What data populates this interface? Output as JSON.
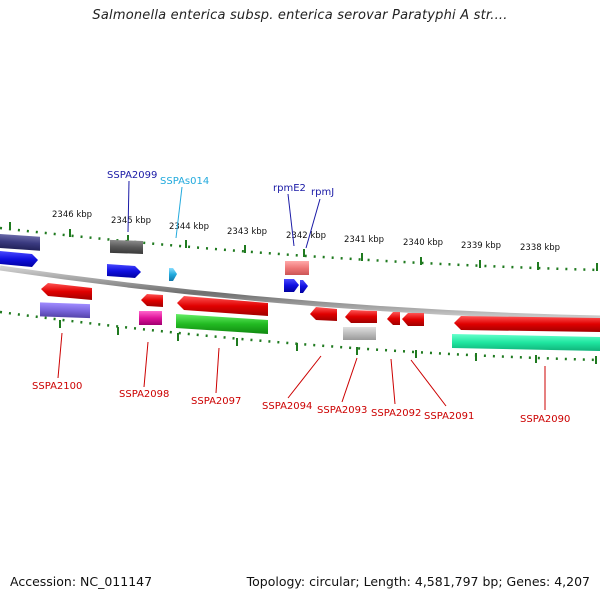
{
  "title": "Salmonella enterica subsp. enterica serovar Paratyphi A str....",
  "footer": {
    "accession": "Accession: NC_011147",
    "summary": "Topology: circular; Length: 4,581,797 bp; Genes: 4,207"
  },
  "colors": {
    "backbone": "#7a7a7a",
    "tick": "#1f7a1f",
    "label_forward_red": "#cc0000",
    "label_blue": "#1a1aa6",
    "label_cyan": "#22aadd"
  },
  "kbp_labels": [
    "2346 kbp",
    "2345 kbp",
    "2344 kbp",
    "2343 kbp",
    "2342 kbp",
    "2341 kbp",
    "2340 kbp",
    "2339 kbp",
    "2338 kbp"
  ],
  "upper_labels": [
    {
      "text": "SSPA2099",
      "color": "#1a1aa6"
    },
    {
      "text": "SSPAs014",
      "color": "#22aadd"
    },
    {
      "text": "rpmE2",
      "color": "#1a1aa6"
    },
    {
      "text": "rpmJ",
      "color": "#1a1aa6"
    }
  ],
  "lower_labels": [
    {
      "text": "SSPA2100",
      "color": "#cc0000"
    },
    {
      "text": "SSPA2098",
      "color": "#cc0000"
    },
    {
      "text": "SSPA2097",
      "color": "#cc0000"
    },
    {
      "text": "SSPA2094",
      "color": "#cc0000"
    },
    {
      "text": "SSPA2093",
      "color": "#cc0000"
    },
    {
      "text": "SSPA2092",
      "color": "#cc0000"
    },
    {
      "text": "SSPA2091",
      "color": "#cc0000"
    },
    {
      "text": "SSPA2090",
      "color": "#cc0000"
    }
  ]
}
